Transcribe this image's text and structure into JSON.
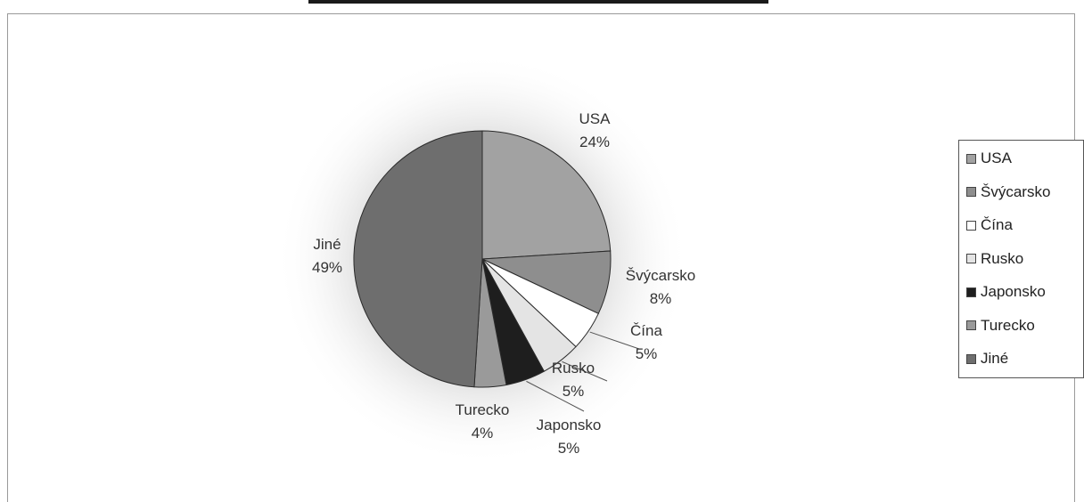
{
  "chart_data": {
    "type": "pie",
    "title": "",
    "slices": [
      {
        "name": "USA",
        "value": 24,
        "label_name": "USA",
        "label_pct": "24%",
        "color": "#a2a2a2"
      },
      {
        "name": "Švýcarsko",
        "value": 8,
        "label_name": "Švýcarsko",
        "label_pct": "8%",
        "color": "#8e8e8e"
      },
      {
        "name": "Čína",
        "value": 5,
        "label_name": "Čína",
        "label_pct": "5%",
        "color": "#ffffff"
      },
      {
        "name": "Rusko",
        "value": 5,
        "label_name": "Rusko",
        "label_pct": "5%",
        "color": "#e4e4e4"
      },
      {
        "name": "Japonsko",
        "value": 5,
        "label_name": "Japonsko",
        "label_pct": "5%",
        "color": "#1e1e1e"
      },
      {
        "name": "Turecko",
        "value": 4,
        "label_name": "Turecko",
        "label_pct": "4%",
        "color": "#9a9a9a"
      },
      {
        "name": "Jiné",
        "value": 49,
        "label_name": "Jiné",
        "label_pct": "49%",
        "color": "#6e6e6e"
      }
    ],
    "legend": {
      "placement": "right",
      "items": [
        "USA",
        "Švýcarsko",
        "Čína",
        "Rusko",
        "Japonsko",
        "Turecko",
        "Jiné"
      ]
    }
  }
}
